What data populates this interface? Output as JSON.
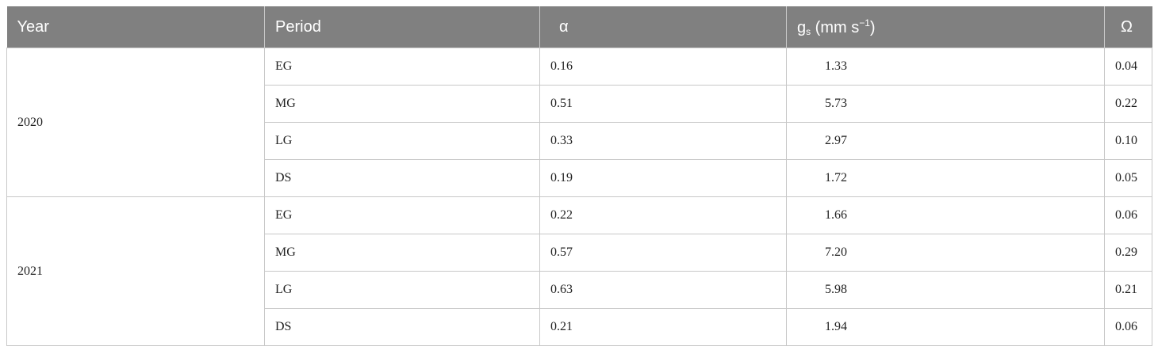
{
  "table": {
    "header": {
      "year": "Year",
      "period": "Period",
      "alpha": "α",
      "gs": {
        "base": "g",
        "sub": "s",
        "unit": " (mm s",
        "sup": "−1",
        "close": ")"
      },
      "omega": "Ω"
    },
    "groups": [
      {
        "year": "2020",
        "rows": [
          [
            "EG",
            "0.16",
            "1.33",
            "0.04"
          ],
          [
            "MG",
            "0.51",
            "5.73",
            "0.22"
          ],
          [
            "LG",
            "0.33",
            "2.97",
            "0.10"
          ],
          [
            "DS",
            "0.19",
            "1.72",
            "0.05"
          ]
        ]
      },
      {
        "year": "2021",
        "rows": [
          [
            "EG",
            "0.22",
            "1.66",
            "0.06"
          ],
          [
            "MG",
            "0.57",
            "7.20",
            "0.29"
          ],
          [
            "LG",
            "0.63",
            "5.98",
            "0.21"
          ],
          [
            "DS",
            "0.21",
            "1.94",
            "0.06"
          ]
        ]
      }
    ]
  }
}
